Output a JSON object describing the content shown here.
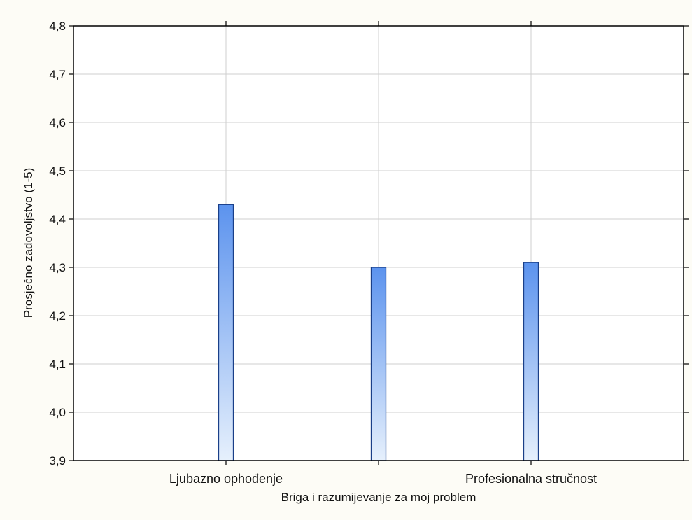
{
  "chart_data": {
    "type": "bar",
    "categories": [
      "Ljubazno ophođenje",
      "",
      "Profesionalna stručnost"
    ],
    "values": [
      4.43,
      4.3,
      4.31
    ],
    "yticks": [
      "3,9",
      "4,0",
      "4,1",
      "4,2",
      "4,3",
      "4,4",
      "4,5",
      "4,6",
      "4,7",
      "4,8"
    ],
    "ytick_values": [
      3.9,
      4.0,
      4.1,
      4.2,
      4.3,
      4.4,
      4.5,
      4.6,
      4.7,
      4.8
    ],
    "xlabel": "Briga i razumijevanje za moj problem",
    "ylabel": "Prosječno zadovoljstvo (1-5)",
    "ylim": [
      3.9,
      4.8
    ],
    "grid": true,
    "colors": {
      "bar_top": "#5c93ee",
      "bar_bottom": "#e6f0fc",
      "bar_edge": "#1a3f88",
      "grid": "#cfcfcf",
      "axis": "#000000",
      "background": "#fdfcf6"
    }
  }
}
